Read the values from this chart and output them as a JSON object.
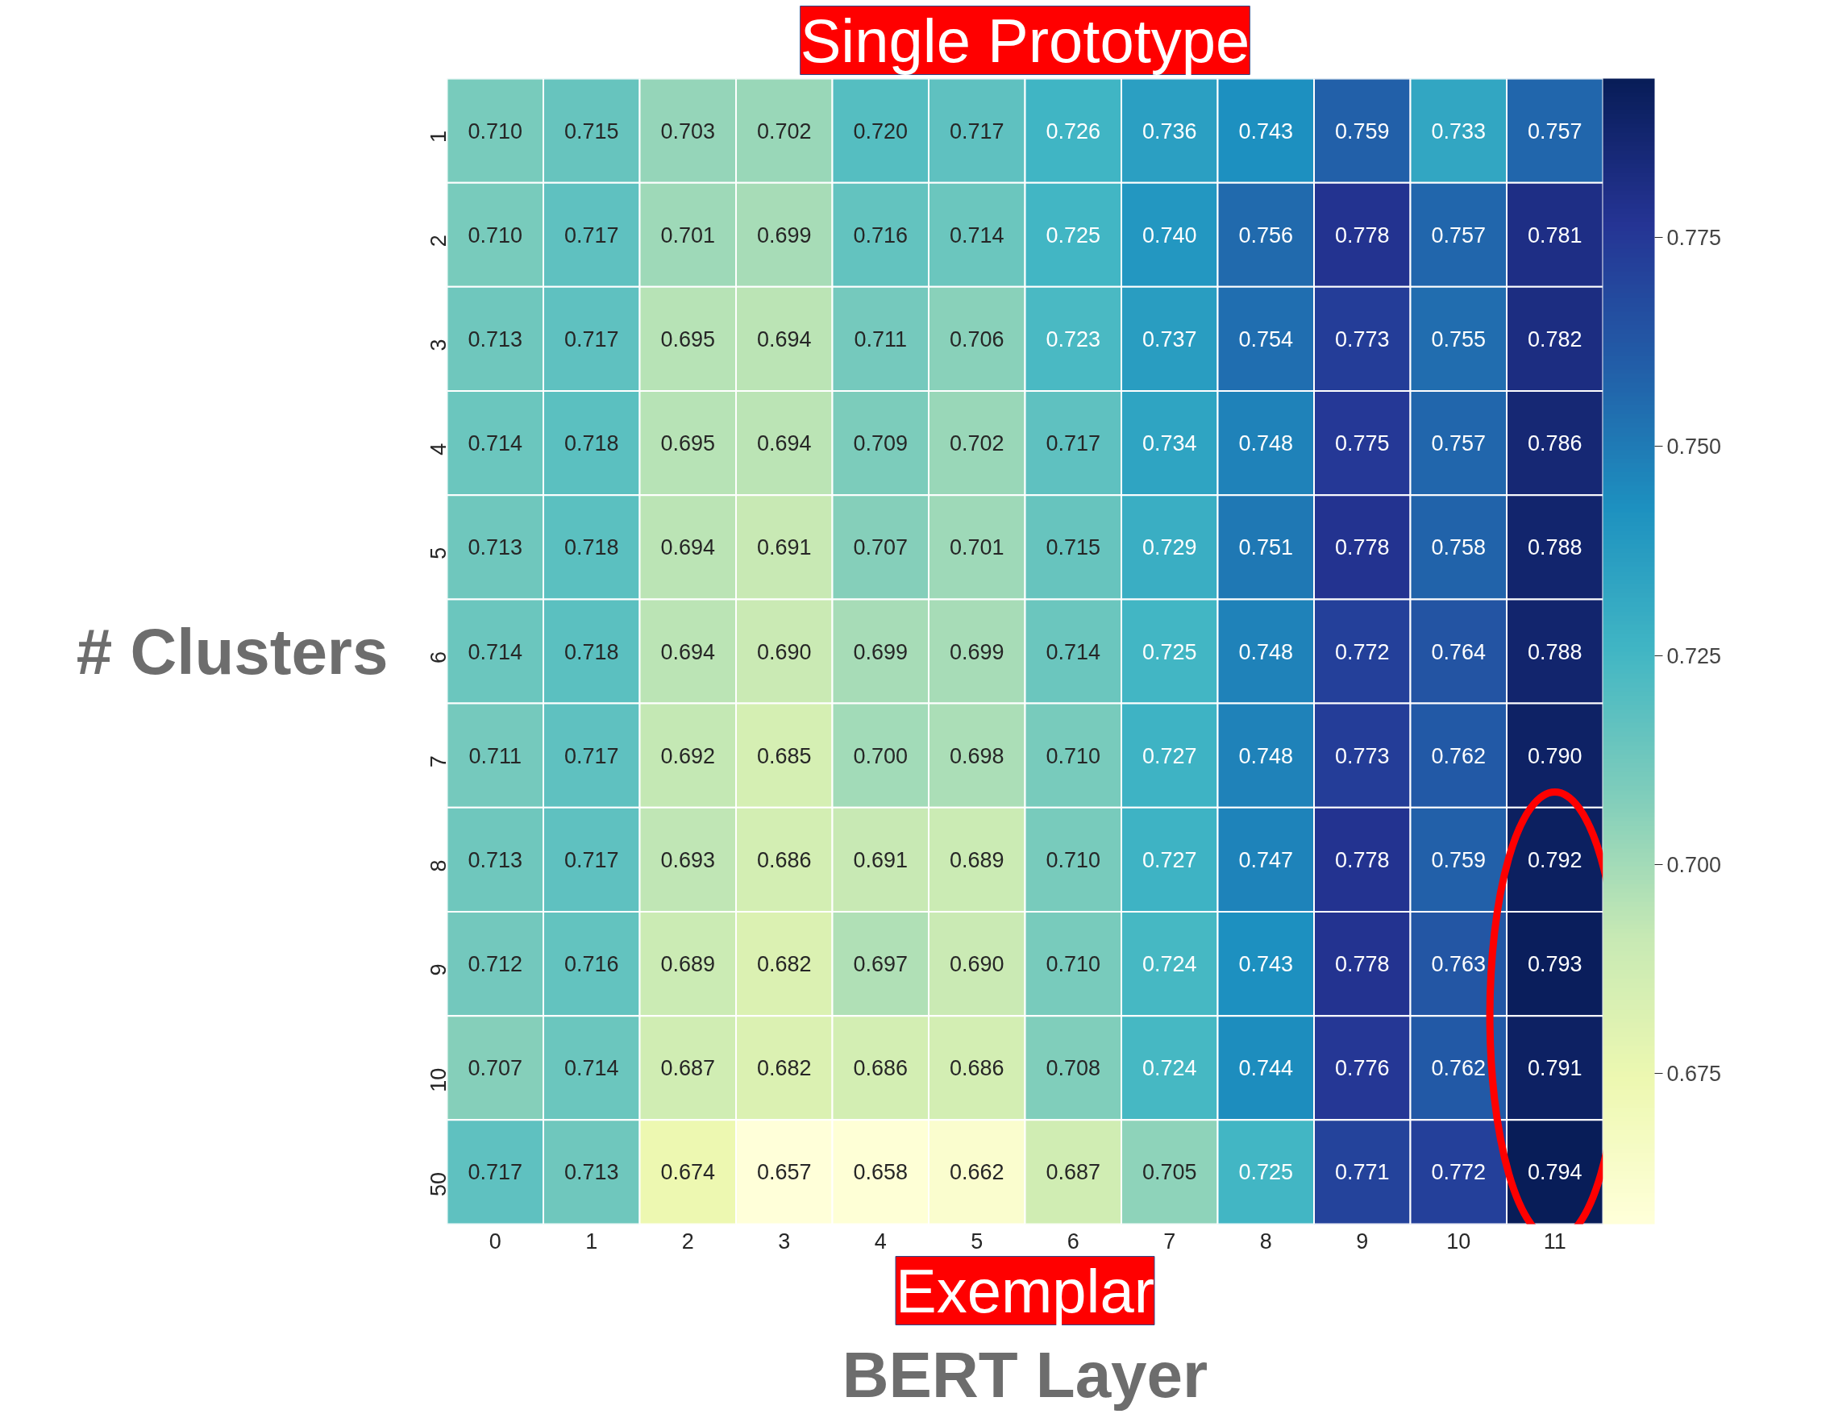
{
  "chart_data": {
    "type": "heatmap",
    "xlabel": "BERT Layer",
    "ylabel": "# Clusters",
    "annotations": [
      "Single Prototype",
      "Exemplar"
    ],
    "categories": [
      "0",
      "1",
      "2",
      "3",
      "4",
      "5",
      "6",
      "7",
      "8",
      "9",
      "10",
      "11"
    ],
    "y_categories": [
      "1",
      "2",
      "3",
      "4",
      "5",
      "6",
      "7",
      "8",
      "9",
      "10",
      "50"
    ],
    "cells": [
      [
        0.71,
        0.715,
        0.703,
        0.702,
        0.72,
        0.717,
        0.726,
        0.736,
        0.743,
        0.759,
        0.733,
        0.757
      ],
      [
        0.71,
        0.717,
        0.701,
        0.699,
        0.716,
        0.714,
        0.725,
        0.74,
        0.756,
        0.778,
        0.757,
        0.781
      ],
      [
        0.713,
        0.717,
        0.695,
        0.694,
        0.711,
        0.706,
        0.723,
        0.737,
        0.754,
        0.773,
        0.755,
        0.782
      ],
      [
        0.714,
        0.718,
        0.695,
        0.694,
        0.709,
        0.702,
        0.717,
        0.734,
        0.748,
        0.775,
        0.757,
        0.786
      ],
      [
        0.713,
        0.718,
        0.694,
        0.691,
        0.707,
        0.701,
        0.715,
        0.729,
        0.751,
        0.778,
        0.758,
        0.788
      ],
      [
        0.714,
        0.718,
        0.694,
        0.69,
        0.699,
        0.699,
        0.714,
        0.725,
        0.748,
        0.772,
        0.764,
        0.788
      ],
      [
        0.711,
        0.717,
        0.692,
        0.685,
        0.7,
        0.698,
        0.71,
        0.727,
        0.748,
        0.773,
        0.762,
        0.79
      ],
      [
        0.713,
        0.717,
        0.693,
        0.686,
        0.691,
        0.689,
        0.71,
        0.727,
        0.747,
        0.778,
        0.759,
        0.792
      ],
      [
        0.712,
        0.716,
        0.689,
        0.682,
        0.697,
        0.69,
        0.71,
        0.724,
        0.743,
        0.778,
        0.763,
        0.793
      ],
      [
        0.707,
        0.714,
        0.687,
        0.682,
        0.686,
        0.686,
        0.708,
        0.724,
        0.744,
        0.776,
        0.762,
        0.791
      ],
      [
        0.717,
        0.713,
        0.674,
        0.657,
        0.658,
        0.662,
        0.687,
        0.705,
        0.725,
        0.771,
        0.772,
        0.794
      ]
    ],
    "clim": [
      0.657,
      0.794
    ],
    "cticks": [
      {
        "value": 0.675,
        "label": "0.675"
      },
      {
        "value": 0.7,
        "label": "0.700"
      },
      {
        "value": 0.725,
        "label": "0.725"
      },
      {
        "value": 0.75,
        "label": "0.750"
      },
      {
        "value": 0.775,
        "label": "0.775"
      }
    ],
    "cell_labels": [
      [
        "0.710",
        "0.715",
        "0.703",
        "0.702",
        "0.720",
        "0.717",
        "0.726",
        "0.736",
        "0.743",
        "0.759",
        "0.733",
        "0.757"
      ],
      [
        "0.710",
        "0.717",
        "0.701",
        "0.699",
        "0.716",
        "0.714",
        "0.725",
        "0.740",
        "0.756",
        "0.778",
        "0.757",
        "0.781"
      ],
      [
        "0.713",
        "0.717",
        "0.695",
        "0.694",
        "0.711",
        "0.706",
        "0.723",
        "0.737",
        "0.754",
        "0.773",
        "0.755",
        "0.782"
      ],
      [
        "0.714",
        "0.718",
        "0.695",
        "0.694",
        "0.709",
        "0.702",
        "0.717",
        "0.734",
        "0.748",
        "0.775",
        "0.757",
        "0.786"
      ],
      [
        "0.713",
        "0.718",
        "0.694",
        "0.691",
        "0.707",
        "0.701",
        "0.715",
        "0.729",
        "0.751",
        "0.778",
        "0.758",
        "0.788"
      ],
      [
        "0.714",
        "0.718",
        "0.694",
        "0.690",
        "0.699",
        "0.699",
        "0.714",
        "0.725",
        "0.748",
        "0.772",
        "0.764",
        "0.788"
      ],
      [
        "0.711",
        "0.717",
        "0.692",
        "0.685",
        "0.700",
        "0.698",
        "0.710",
        "0.727",
        "0.748",
        "0.773",
        "0.762",
        "0.790"
      ],
      [
        "0.713",
        "0.717",
        "0.693",
        "0.686",
        "0.691",
        "0.689",
        "0.710",
        "0.727",
        "0.747",
        "0.778",
        "0.759",
        "0.792"
      ],
      [
        "0.712",
        "0.716",
        "0.689",
        "0.682",
        "0.697",
        "0.690",
        "0.710",
        "0.724",
        "0.743",
        "0.778",
        "0.763",
        "0.793"
      ],
      [
        "0.707",
        "0.714",
        "0.687",
        "0.682",
        "0.686",
        "0.686",
        "0.708",
        "0.724",
        "0.744",
        "0.776",
        "0.762",
        "0.791"
      ],
      [
        "0.717",
        "0.713",
        "0.674",
        "0.657",
        "0.658",
        "0.662",
        "0.687",
        "0.705",
        "0.725",
        "0.771",
        "0.772",
        "0.794"
      ]
    ],
    "data_labels": true
  }
}
